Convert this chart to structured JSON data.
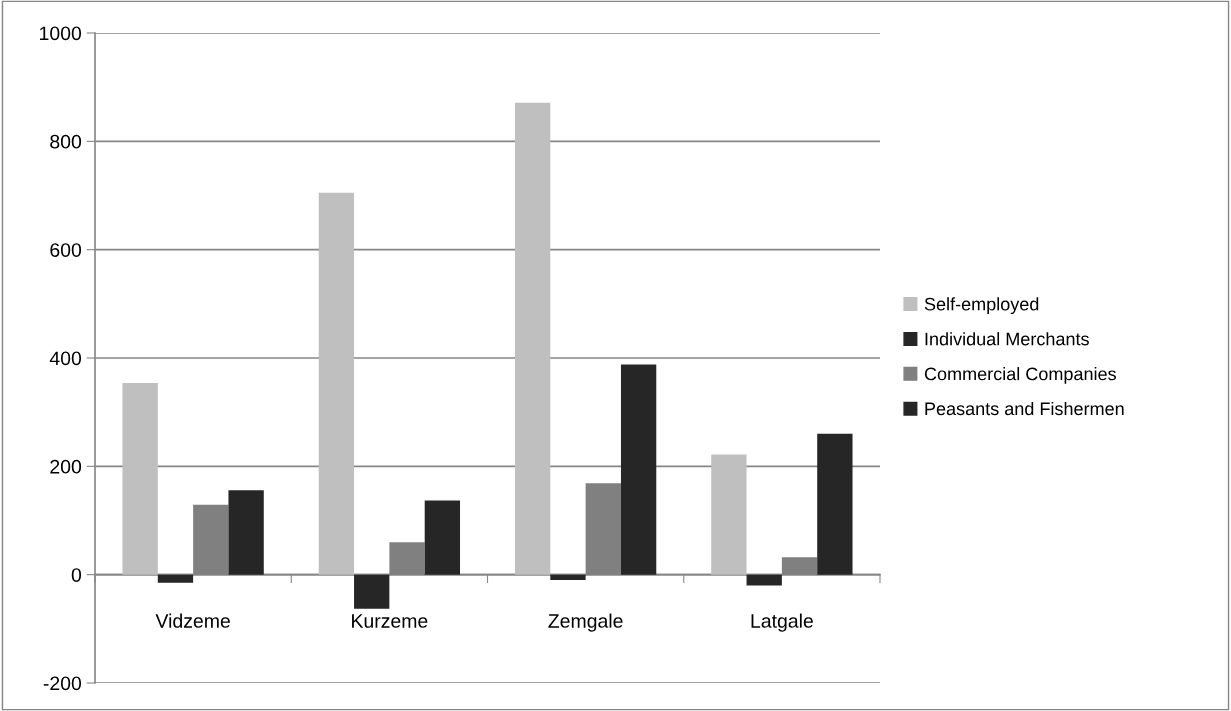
{
  "chart_data": {
    "type": "bar",
    "categories": [
      "Vidzeme",
      "Kurzeme",
      "Zemgale",
      "Latgale"
    ],
    "series": [
      {
        "name": "Self-employed",
        "color": "#bfbfbf",
        "values": [
          354,
          705,
          871,
          222
        ]
      },
      {
        "name": "Individual Merchants",
        "color": "#262626",
        "values": [
          -15,
          -63,
          -10,
          -20
        ]
      },
      {
        "name": "Commercial Companies",
        "color": "#808080",
        "values": [
          129,
          60,
          169,
          32
        ]
      },
      {
        "name": "Peasants and Fishermen",
        "color": "#262626",
        "values": [
          156,
          137,
          388,
          260
        ]
      }
    ],
    "ylim": [
      -200,
      1000
    ],
    "yticks": [
      -200,
      0,
      200,
      400,
      600,
      800,
      1000
    ],
    "grid": "y",
    "legend": "right"
  }
}
